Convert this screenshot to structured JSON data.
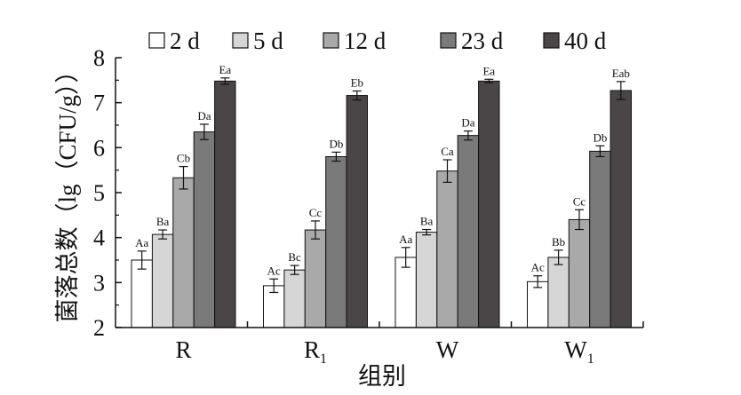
{
  "chart_data": {
    "type": "bar",
    "title": "",
    "xlabel": "组别",
    "ylabel": "菌落总数（lg（CFU/g））",
    "ylim": [
      2,
      8
    ],
    "yticks": [
      "2",
      "3",
      "4",
      "5",
      "6",
      "7",
      "8"
    ],
    "categories": [
      {
        "main": "R",
        "sub": ""
      },
      {
        "main": "R",
        "sub": "1"
      },
      {
        "main": "W",
        "sub": ""
      },
      {
        "main": "W",
        "sub": "1"
      }
    ],
    "legend_position": "top",
    "series": [
      {
        "name": "2 d",
        "color": "#ffffff",
        "values": [
          3.5,
          2.93,
          3.56,
          3.02
        ],
        "errors": [
          0.2,
          0.15,
          0.22,
          0.13
        ],
        "labels": [
          "Aa",
          "Ac",
          "Aa",
          "Ac"
        ]
      },
      {
        "name": "5 d",
        "color": "#d6d6d6",
        "values": [
          4.07,
          3.28,
          4.12,
          3.56
        ],
        "errors": [
          0.1,
          0.1,
          0.06,
          0.16
        ],
        "labels": [
          "Ba",
          "Bc",
          "Ba",
          "Bb"
        ]
      },
      {
        "name": "12 d",
        "color": "#a9a9a9",
        "values": [
          5.33,
          4.17,
          5.48,
          4.4
        ],
        "errors": [
          0.25,
          0.2,
          0.25,
          0.22
        ],
        "labels": [
          "Cb",
          "Cc",
          "Ca",
          "Cc"
        ]
      },
      {
        "name": "23 d",
        "color": "#7a7a7a",
        "values": [
          6.35,
          5.8,
          6.27,
          5.92
        ],
        "errors": [
          0.17,
          0.1,
          0.1,
          0.12
        ],
        "labels": [
          "Da",
          "Db",
          "Da",
          "Db"
        ]
      },
      {
        "name": "40 d",
        "color": "#4a4648",
        "values": [
          7.48,
          7.16,
          7.48,
          7.27
        ],
        "errors": [
          0.07,
          0.1,
          0.04,
          0.2
        ],
        "labels": [
          "Ea",
          "Eb",
          "Ea",
          "Eab"
        ]
      }
    ]
  }
}
